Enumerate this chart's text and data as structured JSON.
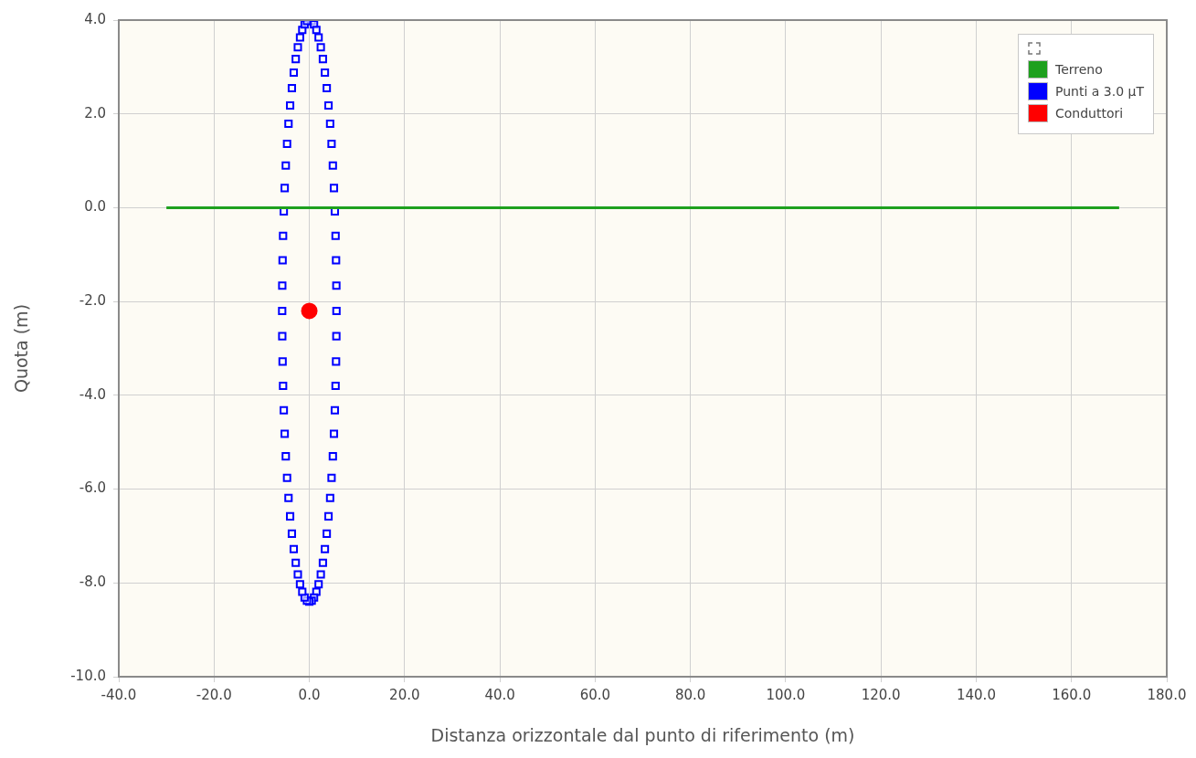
{
  "chart_data": {
    "type": "scatter",
    "xlabel": "Distanza orizzontale dal punto di riferimento (m)",
    "ylabel": "Quota (m)",
    "xlim": [
      -40,
      180
    ],
    "ylim": [
      -10,
      4
    ],
    "xticks": [
      {
        "value": -40,
        "label": "-40.0"
      },
      {
        "value": -20,
        "label": "-20.0"
      },
      {
        "value": 0,
        "label": "0.0"
      },
      {
        "value": 20,
        "label": "20.0"
      },
      {
        "value": 40,
        "label": "40.0"
      },
      {
        "value": 60,
        "label": "60.0"
      },
      {
        "value": 80,
        "label": "80.0"
      },
      {
        "value": 100,
        "label": "100.0"
      },
      {
        "value": 120,
        "label": "120.0"
      },
      {
        "value": 140,
        "label": "140.0"
      },
      {
        "value": 160,
        "label": "160.0"
      },
      {
        "value": 180,
        "label": "180.0"
      }
    ],
    "yticks": [
      {
        "value": -10,
        "label": "-10.0"
      },
      {
        "value": -8,
        "label": "-8.0"
      },
      {
        "value": -6,
        "label": "-6.0"
      },
      {
        "value": -4,
        "label": "-4.0"
      },
      {
        "value": -2,
        "label": "-2.0"
      },
      {
        "value": 0,
        "label": "0.0"
      },
      {
        "value": 2,
        "label": "2.0"
      },
      {
        "value": 4,
        "label": "4.0"
      }
    ],
    "grid": true,
    "legend": "top right",
    "series": [
      {
        "name": "Terreno",
        "type": "line",
        "color": "#1ea01e",
        "marker": "none",
        "x": [
          -30,
          170
        ],
        "values": [
          0,
          0
        ]
      },
      {
        "name": "Punti a 3.0 μT",
        "type": "scatter",
        "color": "#0000ff",
        "marker": "square",
        "x": [
          0,
          0.5,
          0.99,
          1.48,
          1.95,
          2.41,
          2.85,
          3.27,
          3.66,
          4.03,
          4.37,
          4.67,
          4.94,
          5.17,
          5.36,
          5.51,
          5.61,
          5.68,
          5.7,
          5.68,
          5.61,
          5.51,
          5.36,
          5.17,
          4.94,
          4.67,
          4.37,
          4.03,
          3.66,
          3.27,
          2.85,
          2.41,
          1.95,
          1.48,
          0.99,
          0.5,
          0,
          -0.5,
          -0.99,
          -1.48,
          -1.95,
          -2.41,
          -2.85,
          -3.27,
          -3.66,
          -4.03,
          -4.37,
          -4.67,
          -4.94,
          -5.17,
          -5.36,
          -5.51,
          -5.61,
          -5.68,
          -5.7,
          -5.68,
          -5.61,
          -5.51,
          -5.36,
          -5.17,
          -4.94,
          -4.67,
          -4.37,
          -4.03,
          -3.66,
          -3.27,
          -2.85,
          -2.41,
          -1.95,
          -1.48,
          -0.99,
          -0.5
        ],
        "values": [
          4,
          3.98,
          3.91,
          3.79,
          3.63,
          3.42,
          3.17,
          2.88,
          2.55,
          2.18,
          1.79,
          1.36,
          0.9,
          0.42,
          -0.08,
          -0.6,
          -1.12,
          -1.66,
          -2.2,
          -2.74,
          -3.28,
          -3.8,
          -4.32,
          -4.82,
          -5.3,
          -5.76,
          -6.19,
          -6.58,
          -6.95,
          -7.28,
          -7.57,
          -7.82,
          -8.03,
          -8.19,
          -8.31,
          -8.38,
          -8.4,
          -8.38,
          -8.31,
          -8.19,
          -8.03,
          -7.82,
          -7.57,
          -7.28,
          -6.95,
          -6.58,
          -6.19,
          -5.76,
          -5.3,
          -4.82,
          -4.32,
          -3.8,
          -3.28,
          -2.74,
          -2.2,
          -1.66,
          -1.12,
          -0.6,
          -0.08,
          0.42,
          0.9,
          1.36,
          1.79,
          2.18,
          2.55,
          2.88,
          3.17,
          3.42,
          3.63,
          3.79,
          3.91,
          3.98
        ]
      },
      {
        "name": "Conduttori",
        "type": "scatter",
        "color": "#ff0000",
        "marker": "circle",
        "x": [
          0
        ],
        "values": [
          -2.2
        ]
      }
    ]
  }
}
